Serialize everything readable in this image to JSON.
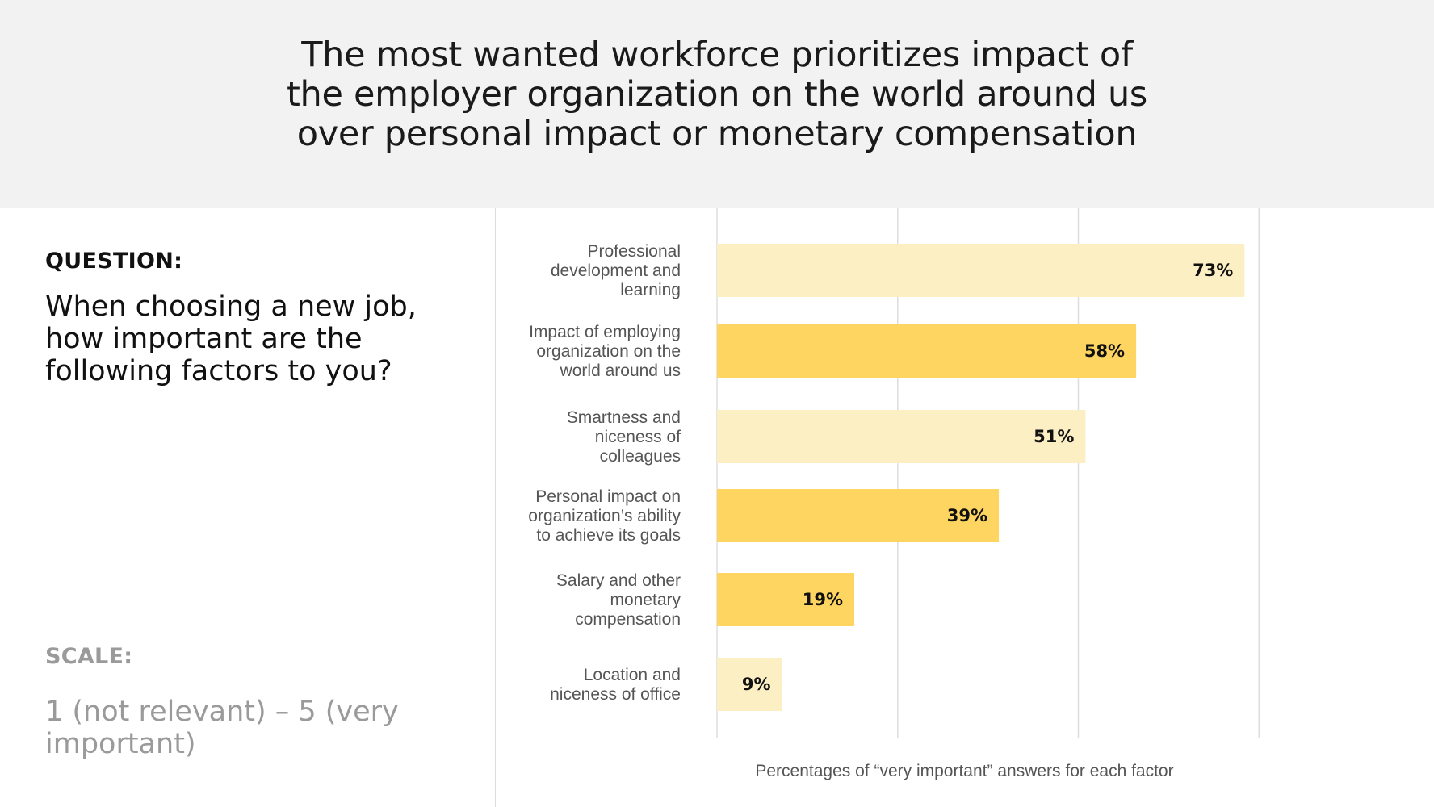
{
  "title_lines": [
    "The most wanted workforce prioritizes impact of",
    "the employer organization on the world around us",
    "over personal impact or monetary compensation"
  ],
  "question": {
    "label": "QUESTION:",
    "text_lines": [
      "When choosing a new job,",
      "how important are the",
      "following factors to you?"
    ]
  },
  "scale": {
    "label": "SCALE:",
    "text_lines": [
      "1 (not relevant) – 5 (very",
      "important)"
    ]
  },
  "footnote": "Percentages of “very important” answers for each factor",
  "colors": {
    "light_bar": "#fdefc4",
    "dark_bar": "#ffd561",
    "gridline": "#dddddd",
    "header_bg": "#f2f2f2"
  },
  "chart_data": {
    "type": "bar",
    "orientation": "horizontal",
    "categories": [
      [
        "Professional",
        "development and",
        "learning"
      ],
      [
        "Impact of employing",
        "organization on the",
        "world around us"
      ],
      [
        "Smartness and",
        "niceness of",
        "colleagues"
      ],
      [
        "Personal impact on",
        "organization’s ability",
        "to achieve its goals"
      ],
      [
        "Salary and other",
        "monetary",
        "compensation"
      ],
      [
        "Location and",
        "niceness of office"
      ]
    ],
    "values": [
      73,
      58,
      51,
      39,
      19,
      9
    ],
    "value_labels": [
      "73%",
      "58%",
      "51%",
      "39%",
      "19%",
      "9%"
    ],
    "bar_shades": [
      "light",
      "dark",
      "light",
      "dark",
      "dark",
      "light"
    ],
    "xlim": [
      0,
      100
    ],
    "gridlines_at": [
      0,
      25,
      50,
      75
    ],
    "grid": true,
    "xlabel": "Percentages of “very important” answers for each factor"
  }
}
